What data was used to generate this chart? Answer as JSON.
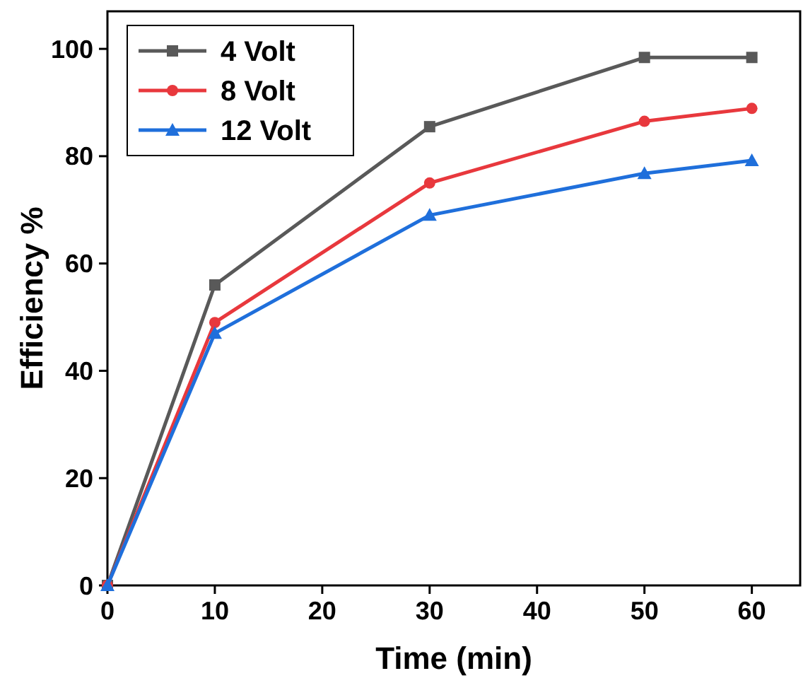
{
  "chart_data": {
    "type": "line",
    "xlabel": "Time (min)",
    "ylabel": "Efficiency %",
    "x": [
      0,
      10,
      30,
      50,
      60
    ],
    "xlim": [
      0,
      64.5
    ],
    "xticks": [
      0,
      10,
      20,
      30,
      40,
      50,
      60
    ],
    "ylim": [
      0,
      107
    ],
    "yticks": [
      0,
      20,
      40,
      60,
      80,
      100
    ],
    "grid": false,
    "legend": "top left",
    "series": [
      {
        "name": "4 Volt",
        "color": "#595959",
        "marker": "square",
        "values": [
          0,
          56,
          85.5,
          98.4,
          98.4
        ]
      },
      {
        "name": "8 Volt",
        "color": "#e8383d",
        "marker": "circle",
        "values": [
          0,
          49,
          75,
          86.5,
          88.9
        ]
      },
      {
        "name": "12 Volt",
        "color": "#1f6fdb",
        "marker": "triangle",
        "values": [
          0,
          47,
          69,
          76.8,
          79.2
        ]
      }
    ]
  }
}
